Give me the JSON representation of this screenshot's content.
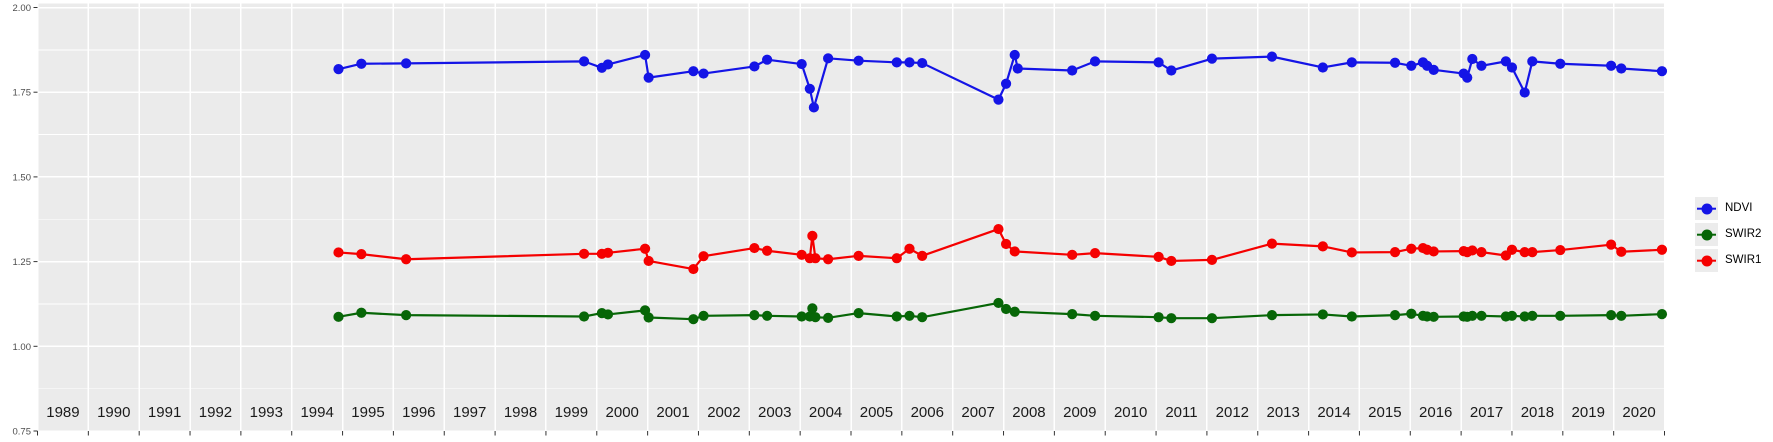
{
  "chart_data": {
    "type": "line",
    "title": "",
    "xlabel": "",
    "ylabel": "",
    "x_axis": {
      "range": [
        1989,
        2021
      ],
      "tick_years": [
        1989,
        1990,
        1991,
        1992,
        1993,
        1994,
        1995,
        1996,
        1997,
        1998,
        1999,
        2000,
        2001,
        2002,
        2003,
        2004,
        2005,
        2006,
        2007,
        2008,
        2009,
        2010,
        2011,
        2012,
        2013,
        2014,
        2015,
        2016,
        2017,
        2018,
        2019,
        2020,
        2021
      ],
      "band_labels": [
        "1989",
        "1990",
        "1991",
        "1992",
        "1993",
        "1994",
        "1995",
        "1996",
        "1997",
        "1998",
        "1999",
        "2000",
        "2001",
        "2002",
        "2003",
        "2004",
        "2005",
        "2006",
        "2007",
        "2008",
        "2009",
        "2010",
        "2011",
        "2012",
        "2013",
        "2014",
        "2015",
        "2016",
        "2017",
        "2018",
        "2019",
        "2020"
      ]
    },
    "y_axis": {
      "range": [
        0.75,
        2.0
      ],
      "major_ticks": [
        2.0,
        1.75,
        1.5,
        1.25,
        1.0,
        0.75
      ],
      "tick_labels": [
        "2.00",
        "1.75",
        "1.50",
        "1.25",
        "1.00",
        "0.75"
      ],
      "minor_ticks": [
        1.875,
        1.625,
        1.375,
        1.125,
        0.875
      ]
    },
    "legend": {
      "position": "right",
      "entries": [
        "NDVI",
        "SWIR2",
        "SWIR1"
      ]
    },
    "series": [
      {
        "name": "NDVI",
        "color": "#1414E6",
        "points": [
          [
            1994.92,
            1.818
          ],
          [
            1995.37,
            1.834
          ],
          [
            1996.25,
            1.835
          ],
          [
            1999.75,
            1.841
          ],
          [
            2000.1,
            1.822
          ],
          [
            2000.22,
            1.832
          ],
          [
            2000.95,
            1.86
          ],
          [
            2001.02,
            1.793
          ],
          [
            2001.9,
            1.812
          ],
          [
            2002.1,
            1.805
          ],
          [
            2003.1,
            1.826
          ],
          [
            2003.35,
            1.846
          ],
          [
            2004.03,
            1.833
          ],
          [
            2004.19,
            1.76
          ],
          [
            2004.27,
            1.705
          ],
          [
            2004.55,
            1.85
          ],
          [
            2005.15,
            1.843
          ],
          [
            2005.9,
            1.838
          ],
          [
            2006.15,
            1.838
          ],
          [
            2006.4,
            1.836
          ],
          [
            2007.9,
            1.728
          ],
          [
            2008.05,
            1.775
          ],
          [
            2008.22,
            1.86
          ],
          [
            2008.28,
            1.82
          ],
          [
            2009.35,
            1.814
          ],
          [
            2009.8,
            1.841
          ],
          [
            2011.05,
            1.838
          ],
          [
            2011.3,
            1.814
          ],
          [
            2012.1,
            1.849
          ],
          [
            2013.28,
            1.855
          ],
          [
            2014.28,
            1.823
          ],
          [
            2014.85,
            1.838
          ],
          [
            2015.7,
            1.837
          ],
          [
            2016.02,
            1.828
          ],
          [
            2016.25,
            1.838
          ],
          [
            2016.33,
            1.828
          ],
          [
            2016.46,
            1.816
          ],
          [
            2017.05,
            1.805
          ],
          [
            2017.12,
            1.793
          ],
          [
            2017.22,
            1.848
          ],
          [
            2017.4,
            1.828
          ],
          [
            2017.88,
            1.841
          ],
          [
            2018.0,
            1.823
          ],
          [
            2018.25,
            1.749
          ],
          [
            2018.4,
            1.841
          ],
          [
            2018.95,
            1.834
          ],
          [
            2019.95,
            1.828
          ],
          [
            2020.15,
            1.82
          ],
          [
            2020.95,
            1.812
          ]
        ]
      },
      {
        "name": "SWIR2",
        "color": "#076607",
        "points": [
          [
            1994.92,
            1.087
          ],
          [
            1995.37,
            1.099
          ],
          [
            1996.25,
            1.092
          ],
          [
            1999.75,
            1.088
          ],
          [
            2000.1,
            1.098
          ],
          [
            2000.22,
            1.094
          ],
          [
            2000.95,
            1.106
          ],
          [
            2001.02,
            1.085
          ],
          [
            2001.9,
            1.08
          ],
          [
            2002.1,
            1.09
          ],
          [
            2003.1,
            1.092
          ],
          [
            2003.35,
            1.09
          ],
          [
            2004.03,
            1.088
          ],
          [
            2004.19,
            1.088
          ],
          [
            2004.24,
            1.112
          ],
          [
            2004.3,
            1.086
          ],
          [
            2004.55,
            1.084
          ],
          [
            2005.15,
            1.098
          ],
          [
            2005.9,
            1.088
          ],
          [
            2006.15,
            1.09
          ],
          [
            2006.4,
            1.086
          ],
          [
            2007.9,
            1.128
          ],
          [
            2008.05,
            1.11
          ],
          [
            2008.22,
            1.102
          ],
          [
            2009.35,
            1.095
          ],
          [
            2009.8,
            1.09
          ],
          [
            2011.05,
            1.086
          ],
          [
            2011.3,
            1.083
          ],
          [
            2012.1,
            1.083
          ],
          [
            2013.28,
            1.092
          ],
          [
            2014.28,
            1.094
          ],
          [
            2014.85,
            1.088
          ],
          [
            2015.7,
            1.092
          ],
          [
            2016.02,
            1.096
          ],
          [
            2016.25,
            1.09
          ],
          [
            2016.33,
            1.088
          ],
          [
            2016.46,
            1.087
          ],
          [
            2017.05,
            1.088
          ],
          [
            2017.12,
            1.087
          ],
          [
            2017.22,
            1.09
          ],
          [
            2017.4,
            1.09
          ],
          [
            2017.88,
            1.088
          ],
          [
            2018.0,
            1.09
          ],
          [
            2018.25,
            1.088
          ],
          [
            2018.4,
            1.09
          ],
          [
            2018.95,
            1.09
          ],
          [
            2019.95,
            1.092
          ],
          [
            2020.15,
            1.09
          ],
          [
            2020.95,
            1.095
          ]
        ]
      },
      {
        "name": "SWIR1",
        "color": "#F50000",
        "points": [
          [
            1994.92,
            1.277
          ],
          [
            1995.37,
            1.272
          ],
          [
            1996.25,
            1.257
          ],
          [
            1999.75,
            1.273
          ],
          [
            2000.1,
            1.273
          ],
          [
            2000.22,
            1.276
          ],
          [
            2000.95,
            1.288
          ],
          [
            2001.02,
            1.252
          ],
          [
            2001.9,
            1.228
          ],
          [
            2002.1,
            1.266
          ],
          [
            2003.1,
            1.29
          ],
          [
            2003.35,
            1.282
          ],
          [
            2004.03,
            1.27
          ],
          [
            2004.19,
            1.26
          ],
          [
            2004.24,
            1.326
          ],
          [
            2004.3,
            1.26
          ],
          [
            2004.55,
            1.257
          ],
          [
            2005.15,
            1.267
          ],
          [
            2005.9,
            1.26
          ],
          [
            2006.15,
            1.288
          ],
          [
            2006.4,
            1.267
          ],
          [
            2007.9,
            1.346
          ],
          [
            2008.05,
            1.302
          ],
          [
            2008.22,
            1.28
          ],
          [
            2009.35,
            1.27
          ],
          [
            2009.8,
            1.275
          ],
          [
            2011.05,
            1.264
          ],
          [
            2011.3,
            1.252
          ],
          [
            2012.1,
            1.255
          ],
          [
            2013.28,
            1.303
          ],
          [
            2014.28,
            1.295
          ],
          [
            2014.85,
            1.277
          ],
          [
            2015.7,
            1.278
          ],
          [
            2016.02,
            1.288
          ],
          [
            2016.25,
            1.29
          ],
          [
            2016.33,
            1.285
          ],
          [
            2016.46,
            1.28
          ],
          [
            2017.05,
            1.281
          ],
          [
            2017.12,
            1.278
          ],
          [
            2017.22,
            1.283
          ],
          [
            2017.4,
            1.278
          ],
          [
            2017.88,
            1.268
          ],
          [
            2018.0,
            1.285
          ],
          [
            2018.25,
            1.278
          ],
          [
            2018.4,
            1.278
          ],
          [
            2018.95,
            1.284
          ],
          [
            2019.95,
            1.3
          ],
          [
            2020.15,
            1.279
          ],
          [
            2020.95,
            1.285
          ]
        ]
      }
    ]
  },
  "styles": {
    "panel_bg": "#EBEBEB",
    "grid_color": "#FFFFFF",
    "axis_text_color": "#4D4D4D",
    "year_label_color": "#1A1A1A",
    "tick_color": "#333333",
    "legend_key_bg": "#ECECEC"
  }
}
